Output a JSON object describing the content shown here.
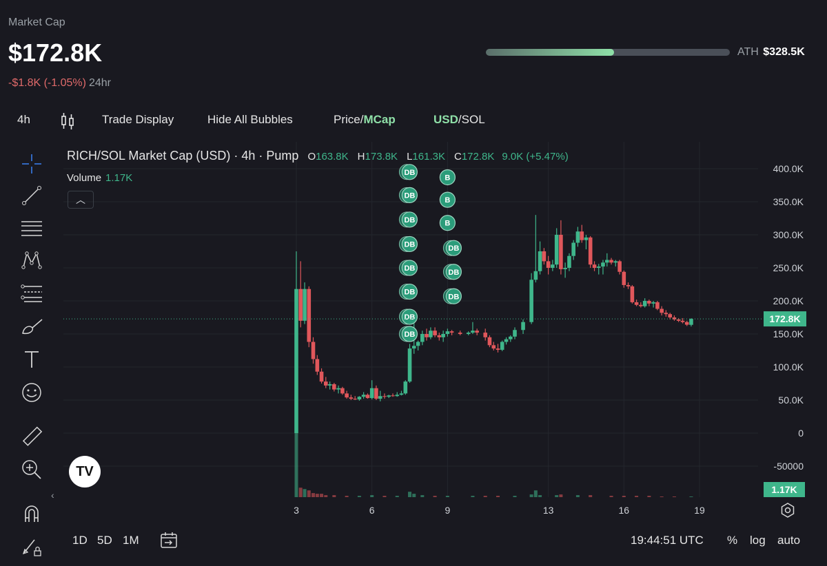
{
  "header": {
    "label": "Market Cap",
    "value": "$172.8K",
    "change": "-$1.8K (-1.05%)",
    "period": "24hr",
    "ath_label": "ATH",
    "ath_value": "$328.5K",
    "ath_progress": 0.526
  },
  "toolbar": {
    "interval": "4h",
    "trade_display": "Trade Display",
    "hide_bubbles": "Hide All Bubbles",
    "price_label": "Price",
    "mcap_label": "MCap",
    "usd_label": "USD",
    "sol_label": "SOL",
    "separator": "/"
  },
  "legend": {
    "title": "RICH/SOL Market Cap (USD) · 4h · Pump",
    "o_label": "O",
    "o_value": "163.8K",
    "h_label": "H",
    "h_value": "173.8K",
    "l_label": "L",
    "l_value": "161.3K",
    "c_label": "C",
    "c_value": "172.8K",
    "change": "9.0K (+5.47%)",
    "volume_label": "Volume",
    "volume_value": "1.17K"
  },
  "bottom": {
    "range_1d": "1D",
    "range_5d": "5D",
    "range_1m": "1M",
    "time": "19:44:51 UTC",
    "percent": "%",
    "log": "log",
    "auto": "auto"
  },
  "colors": {
    "up": "#3fb68b",
    "down": "#e0575b",
    "bubble": "#2b9c7a"
  },
  "chart_data": {
    "type": "candlestick",
    "title": "RICH/SOL Market Cap (USD) · 4h · Pump",
    "yticks": [
      "400.0K",
      "350.0K",
      "300.0K",
      "250.0K",
      "200.0K",
      "150.0K",
      "100.0K",
      "50.0K",
      "0",
      "-50000"
    ],
    "ylim": [
      -50000,
      400000
    ],
    "xticks": [
      {
        "label": "3",
        "day": 3
      },
      {
        "label": "6",
        "day": 6
      },
      {
        "label": "9",
        "day": 9
      },
      {
        "label": "13",
        "day": 13
      },
      {
        "label": "16",
        "day": 16
      },
      {
        "label": "19",
        "day": 19
      }
    ],
    "last_price_label": "172.8K",
    "last_price": 172800,
    "last_volume_label": "1.17K",
    "candles": [
      {
        "t": 3.0,
        "o": 0,
        "h": 275000,
        "l": 0,
        "c": 218000
      },
      {
        "t": 3.17,
        "o": 218000,
        "h": 260000,
        "l": 160000,
        "c": 170000
      },
      {
        "t": 3.33,
        "o": 170000,
        "h": 228000,
        "l": 165000,
        "c": 218000
      },
      {
        "t": 3.5,
        "o": 218000,
        "h": 222000,
        "l": 130000,
        "c": 138000
      },
      {
        "t": 3.67,
        "o": 138000,
        "h": 145000,
        "l": 105000,
        "c": 112000
      },
      {
        "t": 3.83,
        "o": 112000,
        "h": 118000,
        "l": 88000,
        "c": 93000
      },
      {
        "t": 4.0,
        "o": 93000,
        "h": 98000,
        "l": 75000,
        "c": 78000
      },
      {
        "t": 4.17,
        "o": 78000,
        "h": 85000,
        "l": 68000,
        "c": 72000
      },
      {
        "t": 4.33,
        "o": 72000,
        "h": 78000,
        "l": 66000,
        "c": 74000
      },
      {
        "t": 4.5,
        "o": 74000,
        "h": 76000,
        "l": 63000,
        "c": 66000
      },
      {
        "t": 4.67,
        "o": 66000,
        "h": 72000,
        "l": 60000,
        "c": 68000
      },
      {
        "t": 4.83,
        "o": 68000,
        "h": 70000,
        "l": 58000,
        "c": 60000
      },
      {
        "t": 5.0,
        "o": 60000,
        "h": 64000,
        "l": 52000,
        "c": 54000
      },
      {
        "t": 5.17,
        "o": 54000,
        "h": 58000,
        "l": 50000,
        "c": 52000
      },
      {
        "t": 5.33,
        "o": 52000,
        "h": 56000,
        "l": 50000,
        "c": 51000
      },
      {
        "t": 5.5,
        "o": 51000,
        "h": 56000,
        "l": 49000,
        "c": 55000
      },
      {
        "t": 5.67,
        "o": 55000,
        "h": 62000,
        "l": 52000,
        "c": 58000
      },
      {
        "t": 5.83,
        "o": 58000,
        "h": 60000,
        "l": 52000,
        "c": 53000
      },
      {
        "t": 6.0,
        "o": 53000,
        "h": 80000,
        "l": 51000,
        "c": 68000
      },
      {
        "t": 6.17,
        "o": 68000,
        "h": 72000,
        "l": 50000,
        "c": 52000
      },
      {
        "t": 6.33,
        "o": 52000,
        "h": 64000,
        "l": 48000,
        "c": 56000
      },
      {
        "t": 6.5,
        "o": 56000,
        "h": 60000,
        "l": 52000,
        "c": 55000
      },
      {
        "t": 6.67,
        "o": 55000,
        "h": 58000,
        "l": 53000,
        "c": 57000
      },
      {
        "t": 6.83,
        "o": 57000,
        "h": 60000,
        "l": 55000,
        "c": 56000
      },
      {
        "t": 7.0,
        "o": 56000,
        "h": 62000,
        "l": 55000,
        "c": 58000
      },
      {
        "t": 7.17,
        "o": 58000,
        "h": 64000,
        "l": 57000,
        "c": 60000
      },
      {
        "t": 7.33,
        "o": 60000,
        "h": 80000,
        "l": 58000,
        "c": 78000
      },
      {
        "t": 7.5,
        "o": 78000,
        "h": 135000,
        "l": 76000,
        "c": 128000
      },
      {
        "t": 7.67,
        "o": 128000,
        "h": 168000,
        "l": 120000,
        "c": 132000
      },
      {
        "t": 7.83,
        "o": 132000,
        "h": 140000,
        "l": 125000,
        "c": 138000
      },
      {
        "t": 8.0,
        "o": 138000,
        "h": 155000,
        "l": 133000,
        "c": 150000
      },
      {
        "t": 8.17,
        "o": 150000,
        "h": 158000,
        "l": 140000,
        "c": 145000
      },
      {
        "t": 8.33,
        "o": 145000,
        "h": 160000,
        "l": 142000,
        "c": 155000
      },
      {
        "t": 8.5,
        "o": 155000,
        "h": 160000,
        "l": 145000,
        "c": 148000
      },
      {
        "t": 8.67,
        "o": 148000,
        "h": 152000,
        "l": 140000,
        "c": 145000
      },
      {
        "t": 8.83,
        "o": 145000,
        "h": 155000,
        "l": 138000,
        "c": 150000
      },
      {
        "t": 9.0,
        "o": 150000,
        "h": 158000,
        "l": 146000,
        "c": 154000
      },
      {
        "t": 9.17,
        "o": 154000,
        "h": 156000,
        "l": 148000,
        "c": 152000
      },
      {
        "t": 9.5,
        "o": 152000,
        "h": 155000,
        "l": 148000,
        "c": 150000
      },
      {
        "t": 9.83,
        "o": 150000,
        "h": 154000,
        "l": 148000,
        "c": 152000
      },
      {
        "t": 10.0,
        "o": 152000,
        "h": 168000,
        "l": 150000,
        "c": 155000
      },
      {
        "t": 10.17,
        "o": 155000,
        "h": 158000,
        "l": 148000,
        "c": 152000
      },
      {
        "t": 10.5,
        "o": 152000,
        "h": 158000,
        "l": 140000,
        "c": 145000
      },
      {
        "t": 10.67,
        "o": 145000,
        "h": 148000,
        "l": 130000,
        "c": 133000
      },
      {
        "t": 10.83,
        "o": 133000,
        "h": 138000,
        "l": 125000,
        "c": 128000
      },
      {
        "t": 11.0,
        "o": 128000,
        "h": 135000,
        "l": 122000,
        "c": 126000
      },
      {
        "t": 11.17,
        "o": 126000,
        "h": 140000,
        "l": 124000,
        "c": 138000
      },
      {
        "t": 11.33,
        "o": 138000,
        "h": 145000,
        "l": 134000,
        "c": 142000
      },
      {
        "t": 11.5,
        "o": 142000,
        "h": 148000,
        "l": 138000,
        "c": 146000
      },
      {
        "t": 11.67,
        "o": 146000,
        "h": 160000,
        "l": 142000,
        "c": 156000
      },
      {
        "t": 12.0,
        "o": 156000,
        "h": 172000,
        "l": 150000,
        "c": 168000
      },
      {
        "t": 12.33,
        "o": 168000,
        "h": 242000,
        "l": 165000,
        "c": 232000
      },
      {
        "t": 12.5,
        "o": 232000,
        "h": 330000,
        "l": 228000,
        "c": 245000
      },
      {
        "t": 12.67,
        "o": 245000,
        "h": 290000,
        "l": 240000,
        "c": 275000
      },
      {
        "t": 12.83,
        "o": 275000,
        "h": 280000,
        "l": 255000,
        "c": 260000
      },
      {
        "t": 13.0,
        "o": 260000,
        "h": 268000,
        "l": 240000,
        "c": 250000
      },
      {
        "t": 13.17,
        "o": 250000,
        "h": 262000,
        "l": 245000,
        "c": 255000
      },
      {
        "t": 13.33,
        "o": 255000,
        "h": 310000,
        "l": 250000,
        "c": 300000
      },
      {
        "t": 13.5,
        "o": 300000,
        "h": 322000,
        "l": 240000,
        "c": 248000
      },
      {
        "t": 13.67,
        "o": 248000,
        "h": 258000,
        "l": 235000,
        "c": 250000
      },
      {
        "t": 13.83,
        "o": 250000,
        "h": 272000,
        "l": 245000,
        "c": 268000
      },
      {
        "t": 14.0,
        "o": 268000,
        "h": 292000,
        "l": 262000,
        "c": 288000
      },
      {
        "t": 14.17,
        "o": 288000,
        "h": 312000,
        "l": 282000,
        "c": 305000
      },
      {
        "t": 14.33,
        "o": 305000,
        "h": 315000,
        "l": 288000,
        "c": 292000
      },
      {
        "t": 14.5,
        "o": 292000,
        "h": 300000,
        "l": 278000,
        "c": 296000
      },
      {
        "t": 14.67,
        "o": 296000,
        "h": 298000,
        "l": 250000,
        "c": 255000
      },
      {
        "t": 14.83,
        "o": 255000,
        "h": 260000,
        "l": 245000,
        "c": 250000
      },
      {
        "t": 15.0,
        "o": 250000,
        "h": 256000,
        "l": 240000,
        "c": 252000
      },
      {
        "t": 15.17,
        "o": 252000,
        "h": 262000,
        "l": 240000,
        "c": 258000
      },
      {
        "t": 15.33,
        "o": 258000,
        "h": 272000,
        "l": 252000,
        "c": 262000
      },
      {
        "t": 15.5,
        "o": 262000,
        "h": 265000,
        "l": 255000,
        "c": 258000
      },
      {
        "t": 15.67,
        "o": 258000,
        "h": 262000,
        "l": 252000,
        "c": 260000
      },
      {
        "t": 15.83,
        "o": 260000,
        "h": 262000,
        "l": 240000,
        "c": 244000
      },
      {
        "t": 16.0,
        "o": 244000,
        "h": 246000,
        "l": 220000,
        "c": 224000
      },
      {
        "t": 16.17,
        "o": 224000,
        "h": 228000,
        "l": 218000,
        "c": 222000
      },
      {
        "t": 16.33,
        "o": 222000,
        "h": 224000,
        "l": 196000,
        "c": 198000
      },
      {
        "t": 16.5,
        "o": 198000,
        "h": 202000,
        "l": 192000,
        "c": 194000
      },
      {
        "t": 16.67,
        "o": 194000,
        "h": 198000,
        "l": 190000,
        "c": 192000
      },
      {
        "t": 16.83,
        "o": 192000,
        "h": 204000,
        "l": 190000,
        "c": 200000
      },
      {
        "t": 17.0,
        "o": 200000,
        "h": 202000,
        "l": 192000,
        "c": 196000
      },
      {
        "t": 17.17,
        "o": 196000,
        "h": 200000,
        "l": 190000,
        "c": 198000
      },
      {
        "t": 17.33,
        "o": 198000,
        "h": 200000,
        "l": 186000,
        "c": 188000
      },
      {
        "t": 17.5,
        "o": 188000,
        "h": 192000,
        "l": 178000,
        "c": 182000
      },
      {
        "t": 17.67,
        "o": 182000,
        "h": 186000,
        "l": 176000,
        "c": 180000
      },
      {
        "t": 17.83,
        "o": 180000,
        "h": 182000,
        "l": 172000,
        "c": 175000
      },
      {
        "t": 18.0,
        "o": 175000,
        "h": 178000,
        "l": 170000,
        "c": 172000
      },
      {
        "t": 18.17,
        "o": 172000,
        "h": 174000,
        "l": 168000,
        "c": 170000
      },
      {
        "t": 18.33,
        "o": 170000,
        "h": 174000,
        "l": 166000,
        "c": 168000
      },
      {
        "t": 18.5,
        "o": 168000,
        "h": 170000,
        "l": 162000,
        "c": 164000
      },
      {
        "t": 18.67,
        "o": 163800,
        "h": 173800,
        "l": 161300,
        "c": 172800
      }
    ],
    "volumes": [
      {
        "t": 3.0,
        "v": 100
      },
      {
        "t": 3.17,
        "v": 14
      },
      {
        "t": 3.33,
        "v": 12
      },
      {
        "t": 3.5,
        "v": 10
      },
      {
        "t": 3.67,
        "v": 6
      },
      {
        "t": 3.83,
        "v": 5
      },
      {
        "t": 4.0,
        "v": 5
      },
      {
        "t": 4.17,
        "v": 3
      },
      {
        "t": 4.5,
        "v": 3
      },
      {
        "t": 5.0,
        "v": 2
      },
      {
        "t": 5.5,
        "v": 2
      },
      {
        "t": 6.0,
        "v": 3
      },
      {
        "t": 6.5,
        "v": 2
      },
      {
        "t": 7.0,
        "v": 2
      },
      {
        "t": 7.5,
        "v": 8
      },
      {
        "t": 7.67,
        "v": 5
      },
      {
        "t": 8.0,
        "v": 3
      },
      {
        "t": 8.5,
        "v": 2
      },
      {
        "t": 9.0,
        "v": 2
      },
      {
        "t": 10.0,
        "v": 2
      },
      {
        "t": 10.5,
        "v": 2
      },
      {
        "t": 11.0,
        "v": 2
      },
      {
        "t": 11.67,
        "v": 2
      },
      {
        "t": 12.33,
        "v": 4
      },
      {
        "t": 12.5,
        "v": 10
      },
      {
        "t": 12.67,
        "v": 3
      },
      {
        "t": 13.33,
        "v": 3
      },
      {
        "t": 13.5,
        "v": 4
      },
      {
        "t": 14.17,
        "v": 3
      },
      {
        "t": 14.67,
        "v": 3
      },
      {
        "t": 15.5,
        "v": 2
      },
      {
        "t": 16.0,
        "v": 2
      },
      {
        "t": 16.5,
        "v": 2
      },
      {
        "t": 17.0,
        "v": 2
      },
      {
        "t": 17.5,
        "v": 1
      },
      {
        "t": 18.0,
        "v": 1
      },
      {
        "t": 18.67,
        "v": 1
      }
    ],
    "bubbles": [
      {
        "t": 7.25,
        "label": "DB",
        "y": 395000
      },
      {
        "t": 7.25,
        "label": "DB",
        "y": 360000
      },
      {
        "t": 7.25,
        "label": "DB",
        "y": 323000
      },
      {
        "t": 7.25,
        "label": "DB",
        "y": 286000
      },
      {
        "t": 7.25,
        "label": "DB",
        "y": 250000
      },
      {
        "t": 7.25,
        "label": "DB",
        "y": 214000
      },
      {
        "t": 7.25,
        "label": "DB",
        "y": 176000
      },
      {
        "t": 7.25,
        "label": "DB",
        "y": 150000
      },
      {
        "t": 9.0,
        "label": "B",
        "y": 387000
      },
      {
        "t": 9.0,
        "label": "B",
        "y": 353000
      },
      {
        "t": 9.0,
        "label": "B",
        "y": 318000
      },
      {
        "t": 9.0,
        "label": "DB",
        "y": 280000
      },
      {
        "t": 9.0,
        "label": "DB",
        "y": 244000
      },
      {
        "t": 9.0,
        "label": "DB",
        "y": 207000
      }
    ]
  }
}
